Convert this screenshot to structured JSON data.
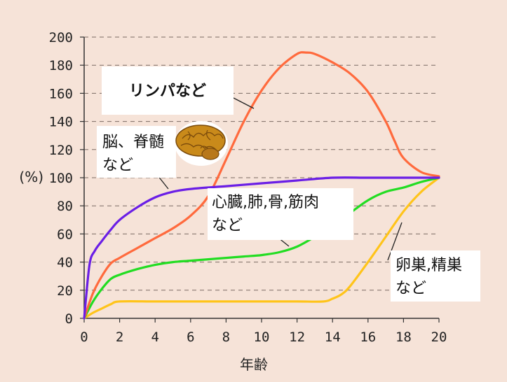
{
  "chart_data": {
    "type": "line",
    "title": "",
    "xlabel": "年齢",
    "ylabel": "(%)",
    "xlim": [
      0,
      20
    ],
    "ylim": [
      0,
      200
    ],
    "x_ticks": [
      0,
      2,
      4,
      6,
      8,
      10,
      12,
      14,
      16,
      18,
      20
    ],
    "y_ticks": [
      0,
      20,
      40,
      60,
      80,
      100,
      120,
      140,
      160,
      180,
      200
    ],
    "grid": "horizontal-dashed",
    "series": [
      {
        "name": "リンパなど",
        "color": "#ff6a3d",
        "x": [
          0,
          0.5,
          1,
          1.5,
          2,
          3,
          4,
          5,
          6,
          7,
          8,
          9,
          10,
          11,
          12,
          12.5,
          13,
          14,
          15,
          16,
          17,
          17.5,
          18,
          19,
          20
        ],
        "y": [
          0,
          18,
          30,
          39,
          43,
          50,
          57,
          64,
          73,
          87,
          113,
          140,
          162,
          178,
          188,
          189,
          188,
          182,
          174,
          161,
          140,
          126,
          114,
          104,
          101
        ]
      },
      {
        "name": "脳、脊髄など",
        "color": "#6a1ee6",
        "x": [
          0,
          0.3,
          0.6,
          1,
          1.5,
          2,
          3,
          4,
          5,
          6,
          8,
          10,
          12,
          14,
          16,
          18,
          20
        ],
        "y": [
          0,
          38,
          48,
          55,
          63,
          70,
          79,
          86,
          90,
          92,
          94,
          96,
          98,
          100,
          100,
          100,
          100
        ]
      },
      {
        "name": "心臓,肺,骨,筋肉など",
        "color": "#22dd22",
        "x": [
          0,
          0.5,
          1,
          1.5,
          2,
          3,
          4,
          5,
          6,
          7,
          8,
          9,
          10,
          11,
          12,
          13,
          14,
          15,
          16,
          17,
          18,
          19,
          20
        ],
        "y": [
          0,
          12,
          21,
          28,
          31,
          35,
          38,
          40,
          41,
          42,
          43,
          44,
          45,
          47,
          51,
          58,
          66,
          75,
          84,
          90,
          93,
          97,
          100
        ]
      },
      {
        "name": "卵巣,精巣など",
        "color": "#ffc41a",
        "x": [
          0,
          0.5,
          1,
          1.5,
          2,
          4,
          6,
          8,
          10,
          12,
          13.5,
          14,
          14.5,
          15,
          16,
          17,
          18,
          19,
          20
        ],
        "y": [
          0,
          4,
          7,
          10,
          12,
          12,
          12,
          12,
          12,
          12,
          12,
          14,
          17,
          23,
          40,
          58,
          76,
          90,
          100
        ]
      }
    ],
    "annotations": [
      "リンパなど",
      "脳、脊髄",
      "など",
      "心臓,肺,骨,筋肉",
      "など",
      "卵巣,精巣",
      "など"
    ],
    "image": "brain-illustration"
  }
}
